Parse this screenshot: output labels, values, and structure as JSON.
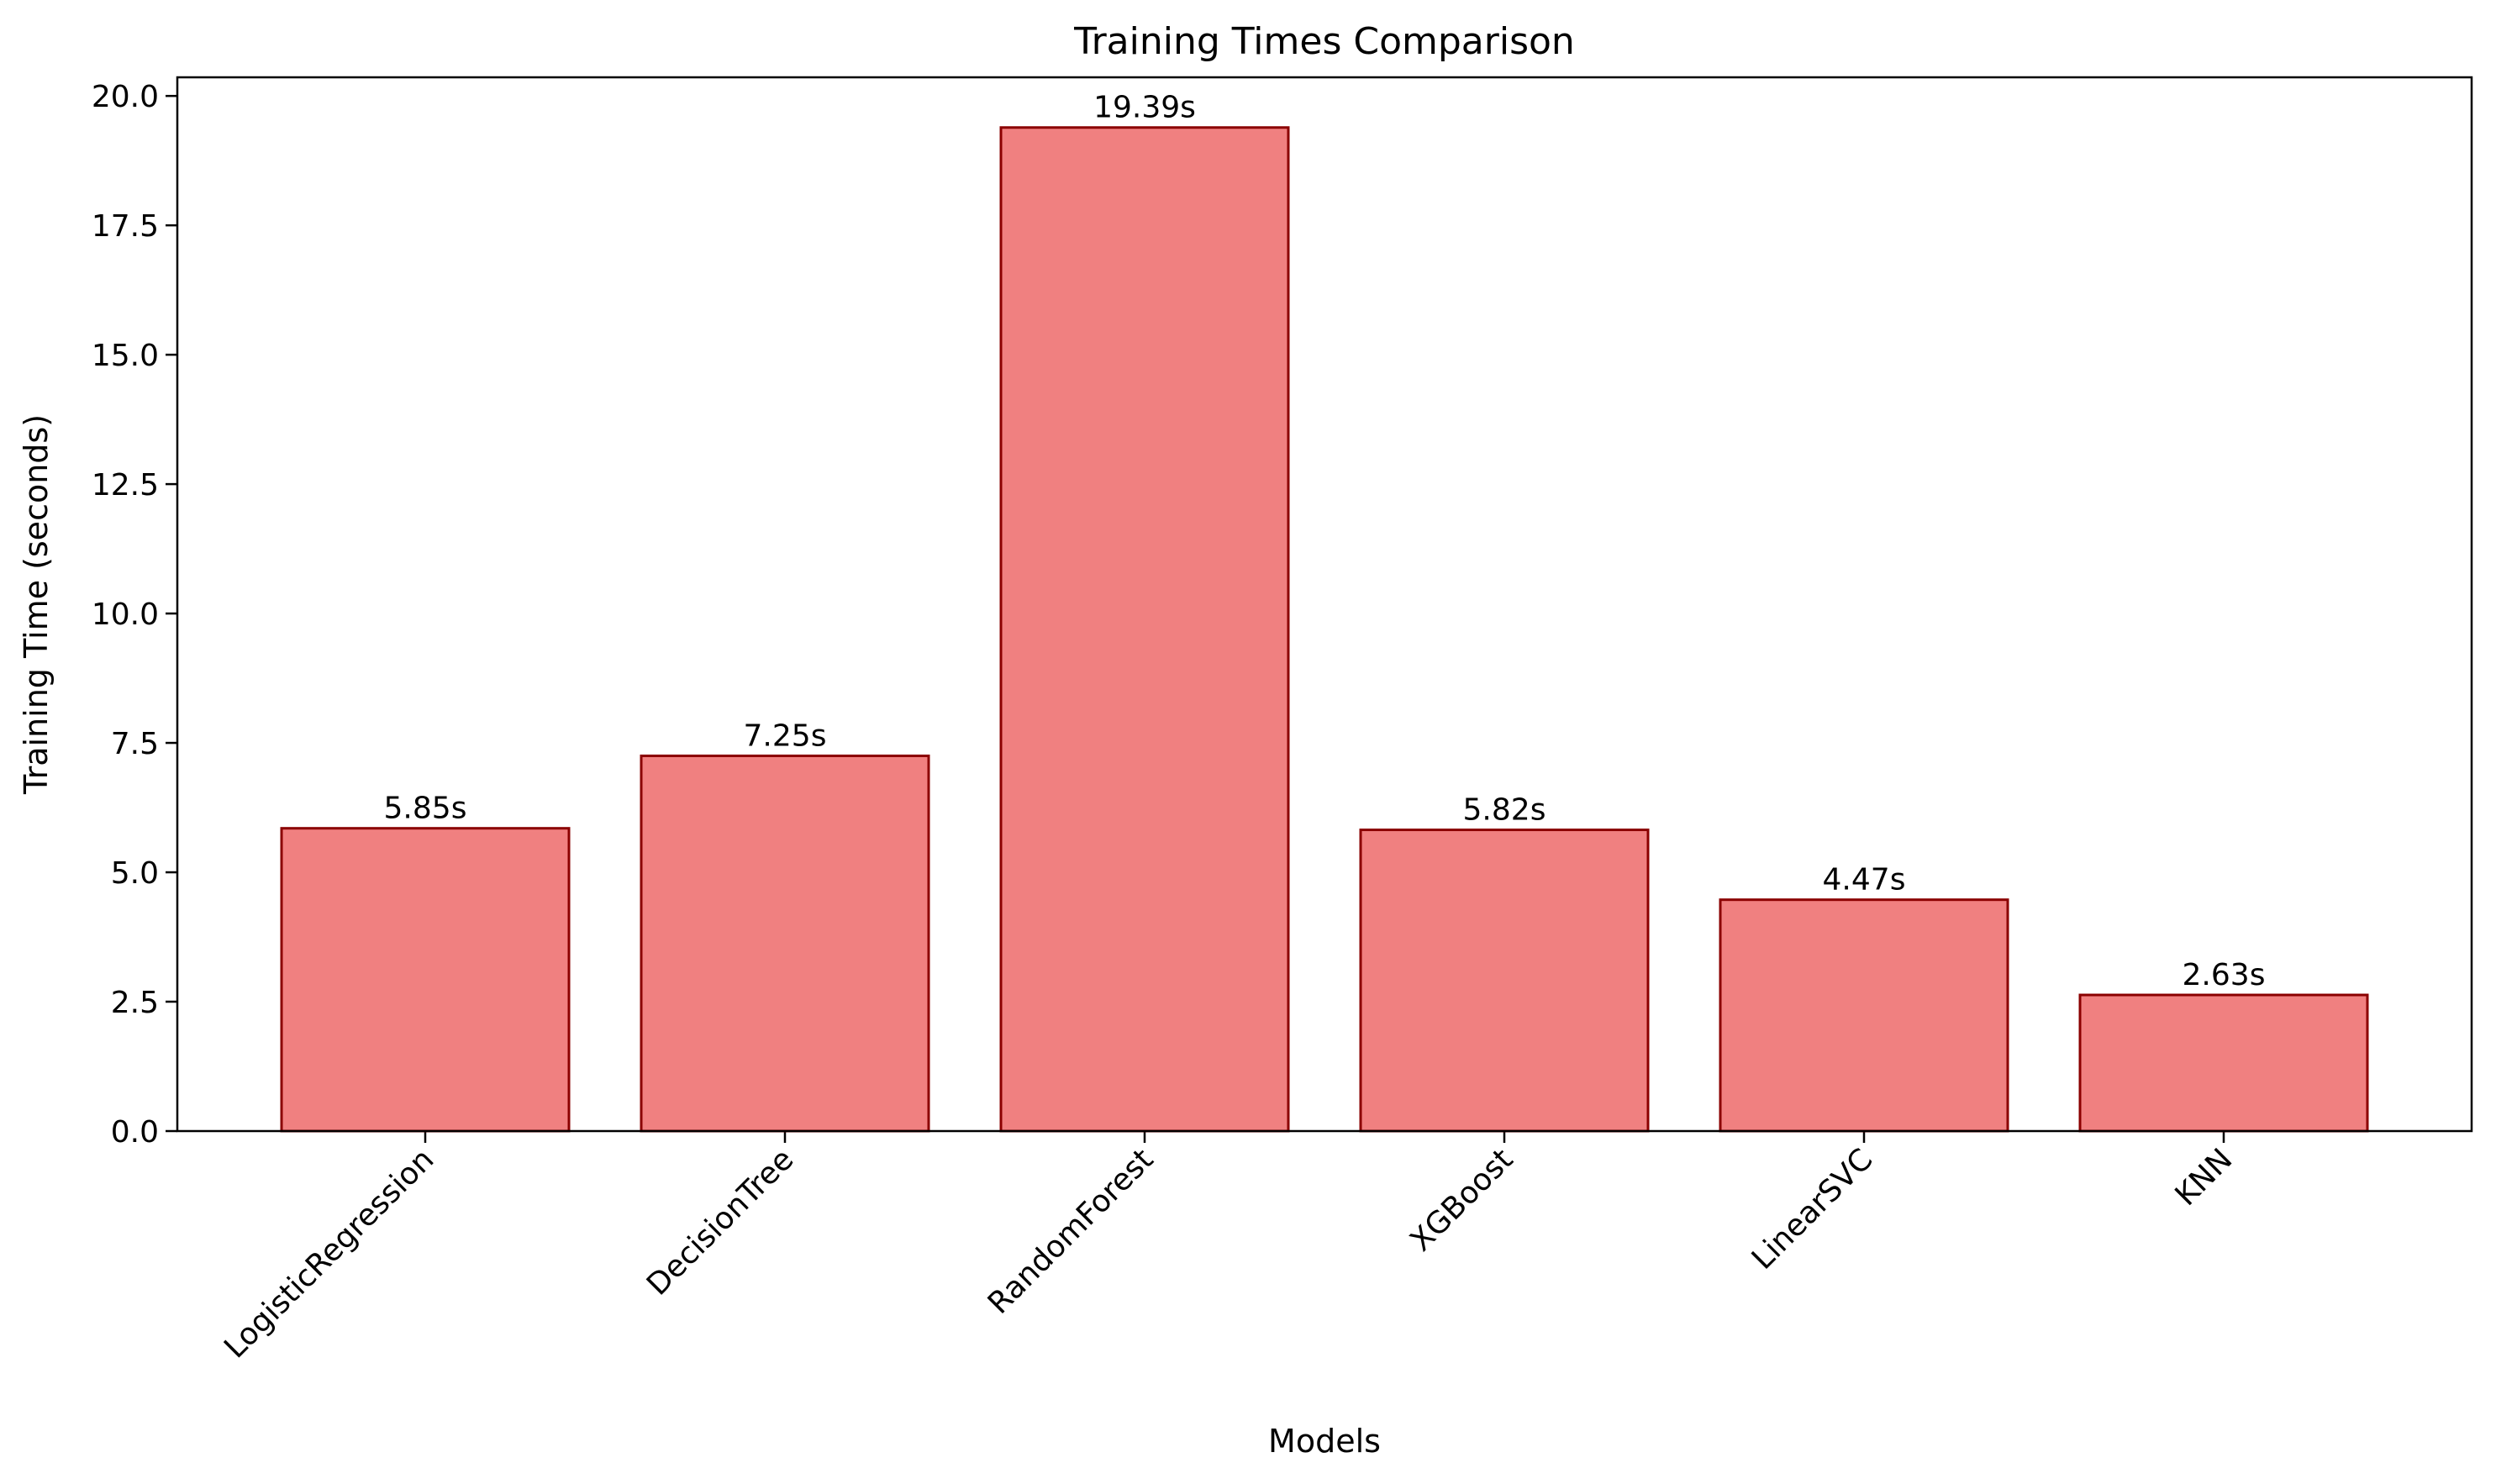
{
  "chart_data": {
    "type": "bar",
    "title": "Training Times Comparison",
    "xlabel": "Models",
    "ylabel": "Training Time (seconds)",
    "categories": [
      "LogisticRegression",
      "DecisionTree",
      "RandomForest",
      "XGBoost",
      "LinearSVC",
      "KNN"
    ],
    "values": [
      5.85,
      7.25,
      19.39,
      5.82,
      4.47,
      2.63
    ],
    "data_labels": [
      "5.85s",
      "7.25s",
      "19.39s",
      "5.82s",
      "4.47s",
      "2.63s"
    ],
    "ylim": [
      0,
      20.36
    ],
    "yticks": [
      0.0,
      2.5,
      5.0,
      7.5,
      10.0,
      12.5,
      15.0,
      17.5,
      20.0
    ],
    "ytick_labels": [
      "0.0",
      "2.5",
      "5.0",
      "7.5",
      "10.0",
      "12.5",
      "15.0",
      "17.5",
      "20.0"
    ],
    "grid": false,
    "colors": {
      "bar_fill": "#f08080",
      "bar_edge": "#8b0000"
    }
  }
}
